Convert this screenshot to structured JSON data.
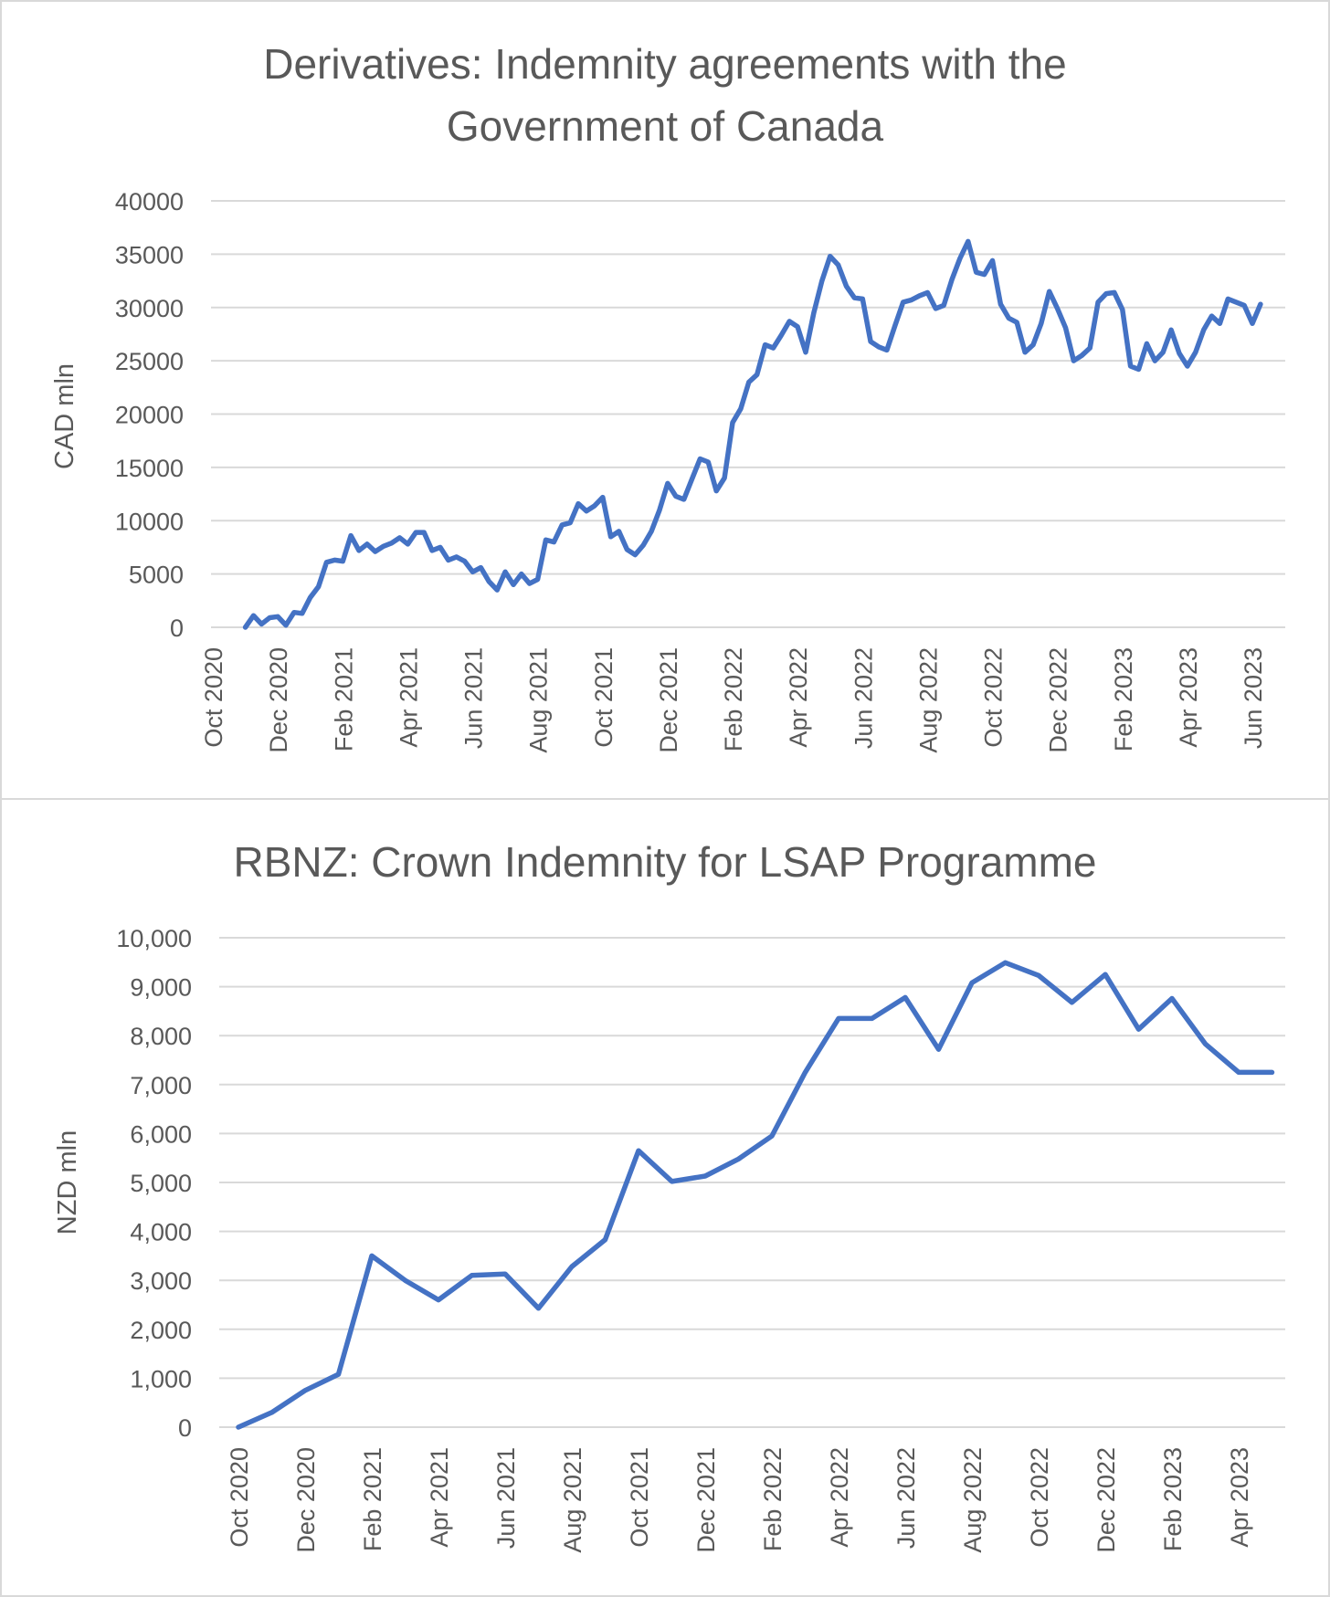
{
  "chart_data": [
    {
      "type": "line",
      "title": "Derivatives: Indemnity agreements with the Government of Canada",
      "y_label": "CAD mln",
      "categories": [
        "Oct 2020",
        null,
        null,
        null,
        null,
        null,
        null,
        null,
        "Dec 2020",
        null,
        null,
        null,
        null,
        null,
        null,
        null,
        "Feb 2021",
        null,
        null,
        null,
        null,
        null,
        null,
        null,
        "Apr 2021",
        null,
        null,
        null,
        null,
        null,
        null,
        null,
        "Jun 2021",
        null,
        null,
        null,
        null,
        null,
        null,
        null,
        "Aug 2021",
        null,
        null,
        null,
        null,
        null,
        null,
        null,
        "Oct 2021",
        null,
        null,
        null,
        null,
        null,
        null,
        null,
        "Dec 2021",
        null,
        null,
        null,
        null,
        null,
        null,
        null,
        "Feb 2022",
        null,
        null,
        null,
        null,
        null,
        null,
        null,
        "Apr 2022",
        null,
        null,
        null,
        null,
        null,
        null,
        null,
        "Jun 2022",
        null,
        null,
        null,
        null,
        null,
        null,
        null,
        "Aug 2022",
        null,
        null,
        null,
        null,
        null,
        null,
        null,
        "Oct 2022",
        null,
        null,
        null,
        null,
        null,
        null,
        null,
        "Dec 2022",
        null,
        null,
        null,
        null,
        null,
        null,
        null,
        "Feb 2023",
        null,
        null,
        null,
        null,
        null,
        null,
        null,
        "Apr 2023",
        null,
        null,
        null,
        null,
        null,
        null,
        null,
        "Jun 2023",
        null
      ],
      "values": [
        null,
        null,
        null,
        null,
        0,
        1100,
        300,
        900,
        1000,
        200,
        1400,
        1300,
        2800,
        3800,
        6100,
        6300,
        6200,
        8600,
        7200,
        7800,
        7100,
        7600,
        7900,
        8400,
        7800,
        8900,
        8900,
        7200,
        7500,
        6300,
        6600,
        6200,
        5200,
        5600,
        4300,
        3500,
        5200,
        4000,
        5000,
        4100,
        4500,
        8200,
        8000,
        9600,
        9800,
        11600,
        10900,
        11400,
        12200,
        8500,
        9000,
        7300,
        6800,
        7700,
        9000,
        11000,
        13500,
        12300,
        12000,
        13900,
        15800,
        15500,
        12800,
        14000,
        19200,
        20500,
        23000,
        23700,
        26500,
        26200,
        27400,
        28700,
        28200,
        25800,
        29500,
        32500,
        34800,
        34000,
        32000,
        30900,
        30800,
        26800,
        26300,
        26000,
        28300,
        30500,
        30700,
        31100,
        31400,
        29900,
        30200,
        32600,
        34600,
        36200,
        33300,
        33100,
        34400,
        30300,
        29000,
        28600,
        25800,
        26500,
        28500,
        31500,
        29900,
        28100,
        25000,
        25500,
        26200,
        30500,
        31300,
        31400,
        29800,
        24500,
        24200,
        26600,
        25000,
        25800,
        27900,
        25700,
        24500,
        25800,
        27900,
        29200,
        28500,
        30800,
        30500,
        30200,
        28500,
        30300
      ],
      "color": "#4472c4",
      "ylim": [
        0,
        40000
      ],
      "yticks": [
        0,
        5000,
        10000,
        15000,
        20000,
        25000,
        30000,
        35000,
        40000
      ],
      "grid": true
    },
    {
      "type": "line",
      "title": "RBNZ: Crown Indemnity for LSAP Programme",
      "y_label": "NZD mln",
      "categories": [
        "Oct 2020",
        null,
        "Dec 2020",
        null,
        "Feb 2021",
        null,
        "Apr 2021",
        null,
        "Jun 2021",
        null,
        "Aug 2021",
        null,
        "Oct 2021",
        null,
        "Dec 2021",
        null,
        "Feb 2022",
        null,
        "Apr 2022",
        null,
        "Jun 2022",
        null,
        "Aug 2022",
        null,
        "Oct 2022",
        null,
        "Dec 2022",
        null,
        "Feb 2023",
        null,
        "Apr 2023",
        null
      ],
      "values": [
        0,
        300,
        750,
        1080,
        3500,
        3000,
        2600,
        3100,
        3130,
        2430,
        3280,
        3830,
        5650,
        5020,
        5130,
        5480,
        5950,
        7250,
        8350,
        8350,
        8780,
        7720,
        9080,
        9490,
        9230,
        8680,
        9250,
        8130,
        8760,
        7830,
        7250,
        7250
      ],
      "color": "#4472c4",
      "ylim": [
        0,
        10000
      ],
      "yticks": [
        0,
        {
          "value": 1000,
          "label": "1,000"
        },
        {
          "value": 2000,
          "label": "2,000"
        },
        {
          "value": 3000,
          "label": "3,000"
        },
        {
          "value": 4000,
          "label": "4,000"
        },
        {
          "value": 5000,
          "label": "5,000"
        },
        {
          "value": 6000,
          "label": "6,000"
        },
        {
          "value": 7000,
          "label": "7,000"
        },
        {
          "value": 8000,
          "label": "8,000"
        },
        {
          "value": 9000,
          "label": "9,000"
        },
        {
          "value": 10000,
          "label": "10,000"
        }
      ],
      "grid": true
    }
  ]
}
